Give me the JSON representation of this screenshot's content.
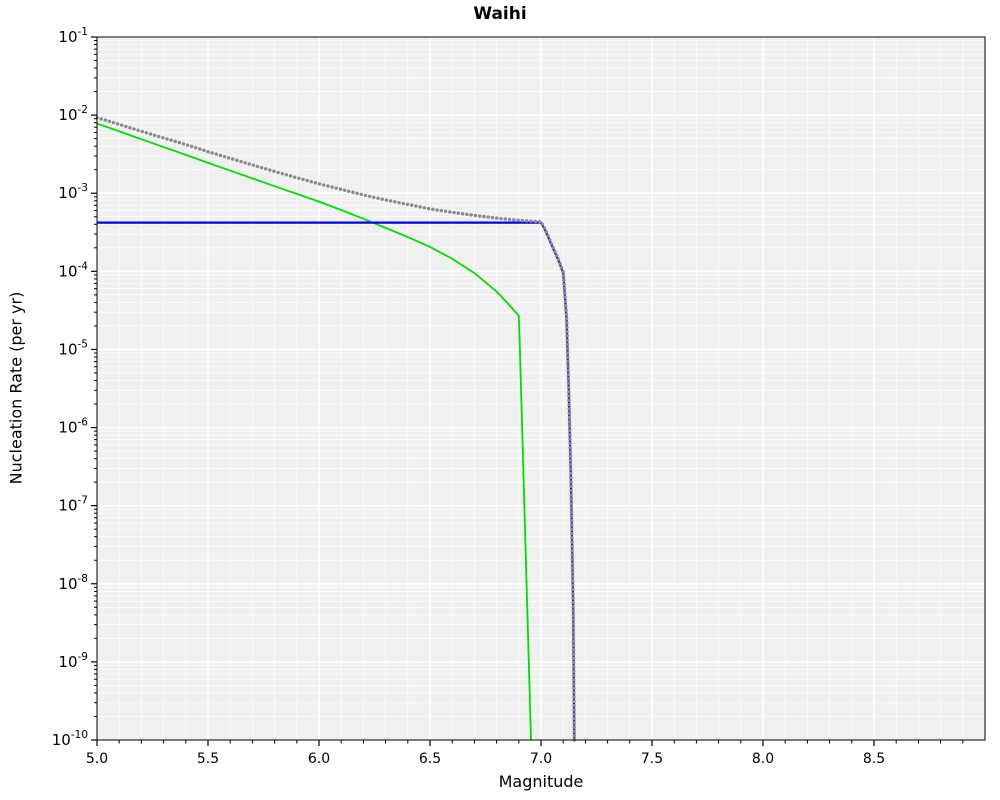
{
  "page": {
    "background": "#ffffff"
  },
  "chart_data": {
    "type": "line",
    "title": "Waihi",
    "xlabel": "Magnitude",
    "ylabel": "Nucleation Rate (per yr)",
    "xlim": [
      5.0,
      9.0
    ],
    "yscale": "log",
    "ylim_exponents": [
      -10,
      -1
    ],
    "x_minor_step": 0.1,
    "x_ticks": [
      {
        "value": 5.0,
        "label": "5.0"
      },
      {
        "value": 5.5,
        "label": "5.5"
      },
      {
        "value": 6.0,
        "label": "6.0"
      },
      {
        "value": 6.5,
        "label": "6.5"
      },
      {
        "value": 7.0,
        "label": "7.0"
      },
      {
        "value": 7.5,
        "label": "7.5"
      },
      {
        "value": 8.0,
        "label": "8.0"
      },
      {
        "value": 8.5,
        "label": "8.5"
      }
    ],
    "y_tick_exponents": [
      -1,
      -2,
      -3,
      -4,
      -5,
      -6,
      -7,
      -8,
      -9,
      -10
    ],
    "grid": {
      "background": "#f0f0f0",
      "major_color": "#ffffff",
      "minor_color": "#ffffff",
      "frame_color": "#000000"
    },
    "legend": {
      "visible": false
    },
    "series": [
      {
        "name": "green-solid-curve",
        "color": "#00dd00",
        "line_style": "solid",
        "line_width": 1.8,
        "points": [
          [
            5.0,
            0.0078
          ],
          [
            5.1,
            0.0062
          ],
          [
            5.2,
            0.0049
          ],
          [
            5.3,
            0.0039
          ],
          [
            5.4,
            0.0031
          ],
          [
            5.5,
            0.00245
          ],
          [
            5.6,
            0.00195
          ],
          [
            5.7,
            0.00155
          ],
          [
            5.8,
            0.00123
          ],
          [
            5.9,
            0.00098
          ],
          [
            6.0,
            0.00078
          ],
          [
            6.1,
            0.00061
          ],
          [
            6.2,
            0.00047
          ],
          [
            6.3,
            0.00036
          ],
          [
            6.4,
            0.000275
          ],
          [
            6.5,
            0.000205
          ],
          [
            6.6,
            0.000145
          ],
          [
            6.7,
            9.5e-05
          ],
          [
            6.8,
            5.5e-05
          ],
          [
            6.85,
            3.9e-05
          ],
          [
            6.9,
            2.7e-05
          ],
          [
            6.905,
            1e-05
          ],
          [
            6.915,
            1e-06
          ],
          [
            6.925,
            1e-07
          ],
          [
            6.935,
            1e-08
          ],
          [
            6.945,
            1e-09
          ],
          [
            6.955,
            1e-10
          ]
        ]
      },
      {
        "name": "blue-solid-curve",
        "color": "#0000ee",
        "line_style": "solid",
        "line_width": 2.2,
        "points": [
          [
            5.0,
            0.00042
          ],
          [
            7.0,
            0.00042
          ],
          [
            7.02,
            0.00033
          ],
          [
            7.05,
            0.00021
          ],
          [
            7.08,
            0.000135
          ],
          [
            7.1,
            9.5e-05
          ],
          [
            7.115,
            2.5e-05
          ],
          [
            7.125,
            3e-06
          ],
          [
            7.135,
            2e-07
          ],
          [
            7.145,
            5e-09
          ],
          [
            7.15,
            1e-10
          ]
        ]
      },
      {
        "name": "gray-dotted-curve",
        "color": "#8a8a8a",
        "line_style": "dotted",
        "line_width": 3.4,
        "points": [
          [
            5.0,
            0.0093
          ],
          [
            5.1,
            0.0076
          ],
          [
            5.2,
            0.0062
          ],
          [
            5.3,
            0.0051
          ],
          [
            5.4,
            0.0042
          ],
          [
            5.5,
            0.0034
          ],
          [
            5.6,
            0.0028
          ],
          [
            5.7,
            0.0023
          ],
          [
            5.8,
            0.0019
          ],
          [
            5.9,
            0.00158
          ],
          [
            6.0,
            0.00132
          ],
          [
            6.1,
            0.00112
          ],
          [
            6.2,
            0.00095
          ],
          [
            6.3,
            0.00082
          ],
          [
            6.4,
            0.00072
          ],
          [
            6.5,
            0.00063
          ],
          [
            6.6,
            0.00057
          ],
          [
            6.7,
            0.00052
          ],
          [
            6.8,
            0.00048
          ],
          [
            6.9,
            0.00045
          ],
          [
            7.0,
            0.00043
          ],
          [
            7.02,
            0.00034
          ],
          [
            7.05,
            0.000215
          ],
          [
            7.08,
            0.00014
          ],
          [
            7.1,
            9.8e-05
          ],
          [
            7.115,
            2.6e-05
          ],
          [
            7.125,
            3.1e-06
          ],
          [
            7.135,
            2.1e-07
          ],
          [
            7.145,
            5.2e-09
          ],
          [
            7.15,
            1e-10
          ]
        ]
      }
    ]
  }
}
